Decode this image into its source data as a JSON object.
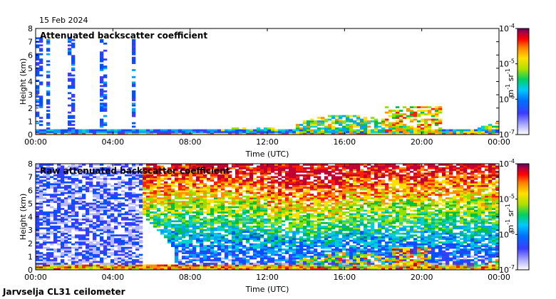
{
  "header": {
    "date": "15 Feb 2024"
  },
  "footer": {
    "instrument": "Jarvselja CL31 ceilometer"
  },
  "chart_data": [
    {
      "type": "heatmap",
      "title": "Attenuated backscatter coefficient",
      "xlabel": "Time (UTC)",
      "ylabel": "Height (km)",
      "x_ticks": [
        "00:00",
        "04:00",
        "08:00",
        "12:00",
        "16:00",
        "20:00",
        "00:00"
      ],
      "y_ticks": [
        "0",
        "1",
        "2",
        "3",
        "4",
        "5",
        "6",
        "7",
        "8"
      ],
      "xlim_hours": [
        0,
        24
      ],
      "ylim_km": [
        0,
        8
      ],
      "colorbar": {
        "scale": "log",
        "range": [
          1e-07,
          0.0001
        ],
        "tick_labels": [
          {
            "base": "10",
            "exp": "-4"
          },
          {
            "base": "10",
            "exp": "-5"
          },
          {
            "base": "10",
            "exp": "-6"
          },
          {
            "base": "10",
            "exp": "-7"
          }
        ],
        "unit": {
          "m": "m",
          "m_exp": "-1",
          "sr": "sr",
          "sr_exp": "-1"
        }
      }
    },
    {
      "type": "heatmap",
      "title": "Raw attenuated backscatter coefficient",
      "xlabel": "Time (UTC)",
      "ylabel": "Height (km)",
      "x_ticks": [
        "00:00",
        "04:00",
        "08:00",
        "12:00",
        "16:00",
        "20:00",
        "00:00"
      ],
      "y_ticks": [
        "0",
        "1",
        "2",
        "3",
        "4",
        "5",
        "6",
        "7",
        "8"
      ],
      "xlim_hours": [
        0,
        24
      ],
      "ylim_km": [
        0,
        8
      ],
      "colorbar": {
        "scale": "log",
        "range": [
          1e-07,
          0.0001
        ],
        "tick_labels": [
          {
            "base": "10",
            "exp": "-4"
          },
          {
            "base": "10",
            "exp": "-5"
          },
          {
            "base": "10",
            "exp": "-6"
          },
          {
            "base": "10",
            "exp": "-7"
          }
        ],
        "unit": {
          "m": "m",
          "m_exp": "-1",
          "sr": "sr",
          "sr_exp": "-1"
        }
      }
    }
  ]
}
